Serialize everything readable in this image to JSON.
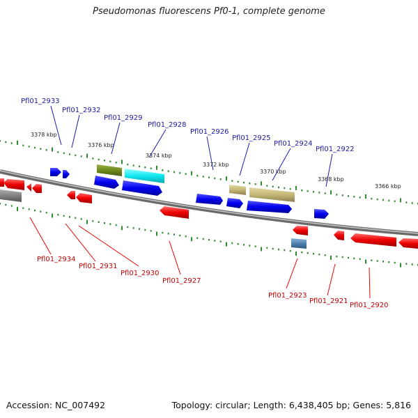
{
  "title": "Pseudomonas fluorescens Pf0-1, complete genome",
  "footer": {
    "accession": "Accession: NC_007492",
    "topology": "Topology: circular; Length: 6,438,405 bp; Genes: 5,816"
  },
  "colors": {
    "backbone": "#8a8a8a",
    "forward_gene": "#0000ee",
    "reverse_gene": "#ee0000",
    "tick": "#2e8b2e",
    "top_label": "#1a1aa6",
    "bottom_label": "#c40000"
  },
  "scale_labels": [
    "3378 kbp",
    "3376 kbp",
    "3374 kbp",
    "3372 kbp",
    "3370 kbp",
    "3368 kbp",
    "3366 kbp"
  ],
  "top_genes": [
    "Pfl01_2933",
    "Pfl01_2932",
    "Pfl01_2929",
    "Pfl01_2928",
    "Pfl01_2926",
    "Pfl01_2925",
    "Pfl01_2924",
    "Pfl01_2922"
  ],
  "bottom_genes": [
    "Pfl01_2934",
    "Pfl01_2931",
    "Pfl01_2930",
    "Pfl01_2927",
    "Pfl01_2923",
    "Pfl01_2921",
    "Pfl01_2920"
  ]
}
